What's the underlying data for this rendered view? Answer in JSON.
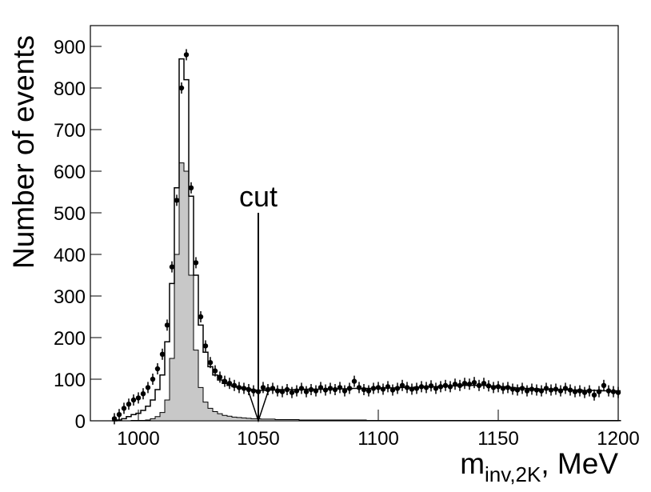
{
  "chart_data": {
    "type": "histogram",
    "y_label": "Number of events",
    "x_label": {
      "main": "m",
      "sub": "inv,2K",
      "unit": ", MeV"
    },
    "xlim": [
      980,
      1200
    ],
    "xticks": [
      1000,
      1050,
      1100,
      1150,
      1200
    ],
    "ylim": [
      0,
      950
    ],
    "yticks": [
      0,
      100,
      200,
      300,
      400,
      500,
      600,
      700,
      800,
      900
    ],
    "annotation": {
      "text": "cut",
      "x": 1050,
      "y": 500
    },
    "x": [
      990,
      992,
      994,
      996,
      998,
      1000,
      1002,
      1004,
      1006,
      1008,
      1010,
      1012,
      1014,
      1016,
      1018,
      1020,
      1022,
      1024,
      1026,
      1028,
      1030,
      1032,
      1034,
      1036,
      1038,
      1040,
      1042,
      1044,
      1046,
      1048,
      1050,
      1052,
      1054,
      1056,
      1058,
      1060,
      1062,
      1064,
      1066,
      1068,
      1070,
      1072,
      1074,
      1076,
      1078,
      1080,
      1082,
      1084,
      1086,
      1088,
      1090,
      1092,
      1094,
      1096,
      1098,
      1100,
      1102,
      1104,
      1106,
      1108,
      1110,
      1112,
      1114,
      1116,
      1118,
      1120,
      1122,
      1124,
      1126,
      1128,
      1130,
      1132,
      1134,
      1136,
      1138,
      1140,
      1142,
      1144,
      1146,
      1148,
      1150,
      1152,
      1154,
      1156,
      1158,
      1160,
      1162,
      1164,
      1166,
      1168,
      1170,
      1172,
      1174,
      1176,
      1178,
      1180,
      1182,
      1184,
      1186,
      1188,
      1190,
      1192,
      1194,
      1196,
      1198,
      1200
    ],
    "series": [
      {
        "style": "fill",
        "color": "#c8c8c8",
        "values": [
          0,
          0,
          0,
          0,
          1,
          1,
          1,
          2,
          5,
          10,
          20,
          50,
          150,
          400,
          620,
          600,
          350,
          170,
          80,
          45,
          30,
          22,
          17,
          13,
          11,
          9,
          8,
          7,
          6,
          5,
          5,
          4,
          4,
          4,
          3,
          3,
          3,
          3,
          3,
          2,
          2,
          2,
          2,
          2,
          2,
          2,
          2,
          2,
          2,
          2,
          2,
          2,
          2,
          1,
          1,
          1,
          1,
          1,
          1,
          1,
          1,
          1,
          1,
          1,
          1,
          1,
          1,
          1,
          1,
          1,
          1,
          1,
          1,
          1,
          1,
          1,
          1,
          1,
          1,
          1,
          1,
          1,
          1,
          1,
          1,
          1,
          1,
          1,
          1,
          1,
          1,
          1,
          1,
          1,
          1,
          1,
          1,
          1,
          1,
          1,
          1,
          1,
          1,
          1,
          1,
          1
        ]
      },
      {
        "style": "step",
        "color": "#000000",
        "values": [
          0,
          2,
          5,
          10,
          15,
          18,
          25,
          35,
          50,
          75,
          110,
          190,
          330,
          560,
          870,
          820,
          540,
          350,
          230,
          165,
          130,
          110,
          98,
          90,
          85,
          82,
          80,
          78,
          76,
          74,
          73,
          73,
          74,
          74,
          74,
          75,
          75,
          75,
          75,
          75,
          76,
          76,
          76,
          76,
          76,
          77,
          77,
          77,
          77,
          77,
          78,
          78,
          78,
          78,
          78,
          78,
          79,
          79,
          79,
          79,
          80,
          80,
          80,
          81,
          81,
          82,
          82,
          82,
          83,
          83,
          84,
          84,
          84,
          85,
          85,
          85,
          85,
          85,
          84,
          84,
          83,
          82,
          81,
          80,
          79,
          78,
          78,
          77,
          77,
          76,
          76,
          76,
          75,
          75,
          75,
          74,
          74,
          74,
          73,
          73,
          73,
          73,
          72,
          72,
          72,
          72
        ]
      },
      {
        "style": "points",
        "color": "#000000",
        "values": [
          5,
          15,
          30,
          40,
          50,
          55,
          65,
          80,
          100,
          125,
          160,
          230,
          370,
          530,
          800,
          880,
          560,
          380,
          250,
          180,
          140,
          120,
          105,
          95,
          90,
          85,
          80,
          78,
          75,
          72,
          70,
          80,
          75,
          78,
          72,
          70,
          75,
          68,
          72,
          78,
          70,
          75,
          72,
          80,
          74,
          78,
          75,
          80,
          72,
          78,
          95,
          80,
          75,
          72,
          78,
          80,
          76,
          82,
          74,
          78,
          85,
          80,
          76,
          78,
          82,
          80,
          84,
          78,
          82,
          85,
          82,
          88,
          85,
          90,
          88,
          92,
          85,
          90,
          84,
          80,
          82,
          78,
          80,
          76,
          74,
          78,
          72,
          76,
          74,
          72,
          78,
          74,
          76,
          72,
          78,
          74,
          70,
          72,
          68,
          72,
          62,
          70,
          85,
          72,
          70,
          68
        ]
      }
    ]
  }
}
